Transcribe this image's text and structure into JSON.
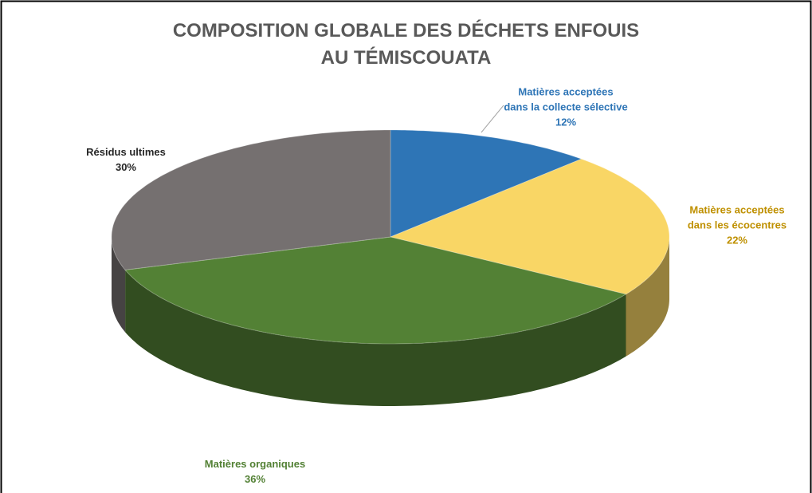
{
  "chart_data": {
    "type": "pie3d",
    "title": [
      "COMPOSITION GLOBALE DES DÉCHETS ENFOUIS",
      "AU TÉMISCOUATA"
    ],
    "categories": [
      [
        "Matières acceptées",
        "dans la collecte sélective"
      ],
      [
        "Matières acceptées",
        "dans les écocentres"
      ],
      [
        "Matières organiques"
      ],
      [
        "Résidus ultimes"
      ]
    ],
    "values": [
      12,
      22,
      36,
      30
    ],
    "value_labels": [
      "12%",
      "22%",
      "36%",
      "30%"
    ],
    "colors": [
      "#2e75b6",
      "#f9d665",
      "#538135",
      "#757070"
    ],
    "label_colors": [
      "#2e75b6",
      "#bf9000",
      "#538135",
      "#262626"
    ]
  }
}
